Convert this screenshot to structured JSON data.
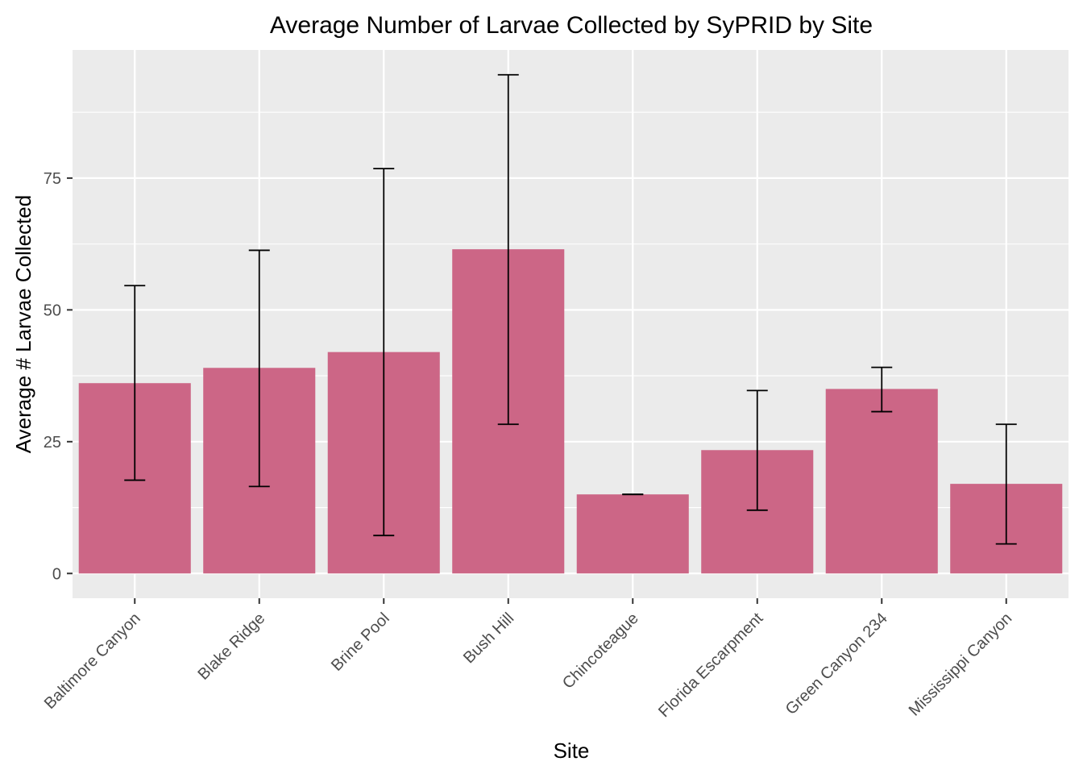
{
  "chart_data": {
    "type": "bar",
    "title": "Average Number of Larvae Collected by SyPRID by Site",
    "xlabel": "Site",
    "ylabel": "Average # Larvae Collected",
    "categories": [
      "Baltimore Canyon",
      "Blake Ridge",
      "Brine Pool",
      "Bush Hill",
      "Chincoteague",
      "Florida Escarpment",
      "Green Canyon 234",
      "Mississippi Canyon"
    ],
    "values": [
      36.1,
      39.0,
      42.0,
      61.5,
      15.0,
      23.4,
      35.0,
      17.0
    ],
    "error_low": [
      17.7,
      16.5,
      7.2,
      28.3,
      15.0,
      12.0,
      30.7,
      5.6
    ],
    "error_high": [
      54.6,
      61.3,
      76.8,
      94.6,
      15.0,
      34.7,
      39.1,
      28.3
    ],
    "yticks": [
      0,
      25,
      50,
      75
    ],
    "ylim": [
      -4.7,
      99.3
    ],
    "grid": true,
    "legend": "none",
    "bar_color": "#cc6686",
    "panel_color": "#ebebeb"
  }
}
